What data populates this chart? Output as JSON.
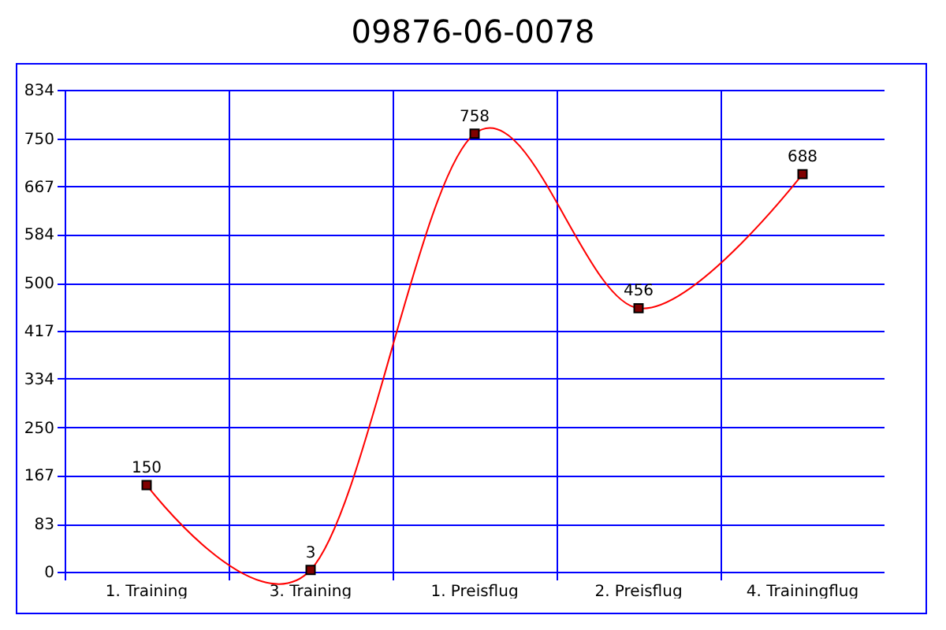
{
  "chart_data": {
    "type": "line",
    "title": "09876-06-0078",
    "categories": [
      "1. Training",
      "3. Training",
      "1. Preisflug",
      "2. Preisflug",
      "4. Trainingflug"
    ],
    "series": [
      {
        "color": "#ff0000",
        "values": [
          150,
          3,
          758,
          456,
          688
        ]
      }
    ],
    "ylim": [
      0,
      834
    ],
    "yticks": [
      0,
      83,
      167,
      250,
      334,
      417,
      500,
      584,
      667,
      750,
      834
    ],
    "grid": true,
    "marker": "square",
    "data_labels": true
  }
}
